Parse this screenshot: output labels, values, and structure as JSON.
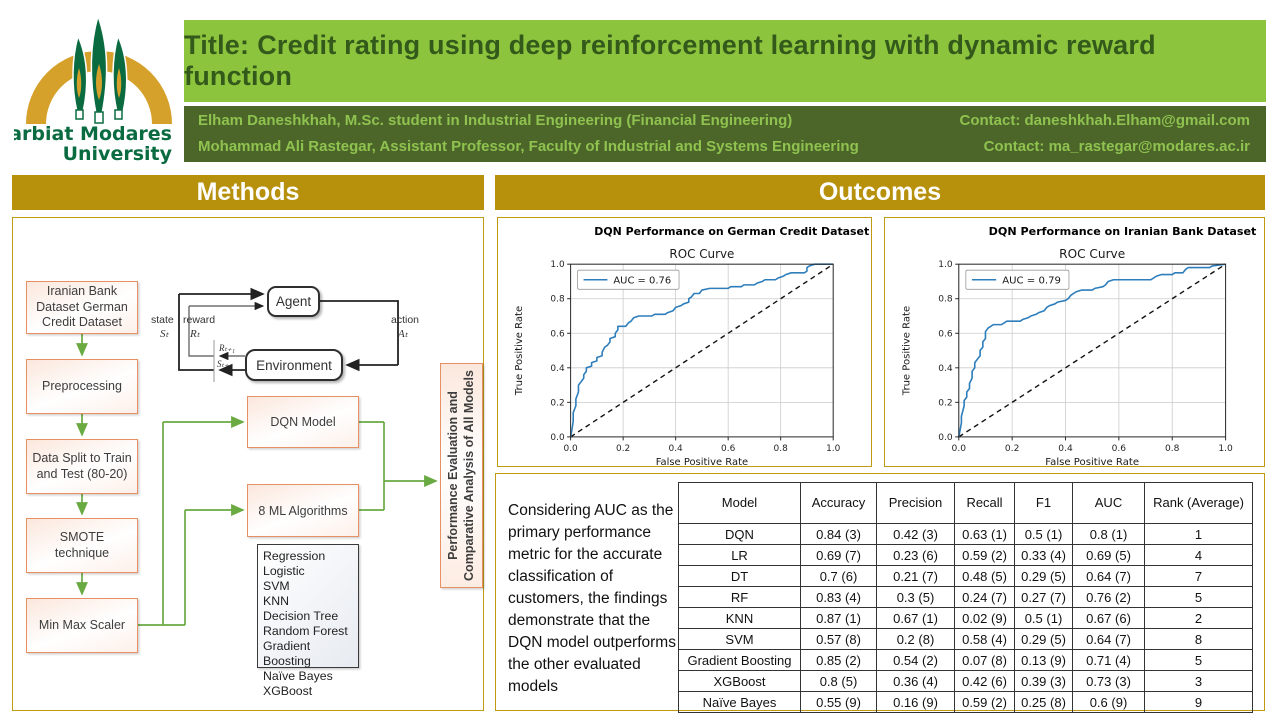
{
  "header": {
    "logo": {
      "line1": "Tarbiat Modares",
      "line2": "University"
    },
    "title_prefix": "Title:",
    "title": "Credit rating using deep reinforcement learning with dynamic reward function",
    "authors": [
      {
        "text": "Elham Daneshkhah, M.Sc. student in Industrial Engineering (Financial Engineering)",
        "contact": "Contact: daneshkhah.Elham@gmail.com"
      },
      {
        "text": "Mohammad Ali Rastegar, Assistant Professor, Faculty of Industrial and Systems Engineering",
        "contact": "Contact: ma_rastegar@modares.ac.ir"
      }
    ]
  },
  "methods": {
    "section_title": "Methods",
    "pipeline": [
      "Iranian Bank Dataset German Credit Dataset",
      "Preprocessing",
      "Data Split to Train and Test (80-20)",
      "SMOTE technique",
      "Min Max Scaler"
    ],
    "rl_diagram": {
      "agent": "Agent",
      "environment": "Environment",
      "state_label": "state",
      "state_sym": "Sₜ",
      "reward_label": "reward",
      "reward_sym": "Rₜ",
      "action_label": "action",
      "action_sym": "Aₜ",
      "r_next": "Rₜ₊₁",
      "s_next": "Sₜ₊₁"
    },
    "dqn_box": "DQN Model",
    "ml_box": "8 ML Algorithms",
    "algorithms": [
      "Regression Logistic",
      "SVM",
      "KNN",
      "Decision Tree",
      "Random Forest",
      "Gradient Boosting",
      "Naïve Bayes",
      "XGBoost"
    ],
    "evaluation_box": "Performance Evaluation and Comparative Analysis of All Models"
  },
  "outcomes": {
    "section_title": "Outcomes",
    "summary_text": "Considering AUC as the primary performance metric for the accurate classification of customers, the findings demonstrate that the DQN model outperforms the other evaluated models",
    "table": {
      "headers": [
        "Model",
        "Accuracy",
        "Precision",
        "Recall",
        "F1",
        "AUC",
        "Rank (Average)"
      ],
      "rows": [
        [
          "DQN",
          "0.84 (3)",
          "0.42 (3)",
          "0.63 (1)",
          "0.5 (1)",
          "0.8 (1)",
          "1"
        ],
        [
          "LR",
          "0.69 (7)",
          "0.23 (6)",
          "0.59 (2)",
          "0.33 (4)",
          "0.69 (5)",
          "4"
        ],
        [
          "DT",
          "0.7 (6)",
          "0.21 (7)",
          "0.48 (5)",
          "0.29 (5)",
          "0.64 (7)",
          "7"
        ],
        [
          "RF",
          "0.83 (4)",
          "0.3 (5)",
          "0.24 (7)",
          "0.27 (7)",
          "0.76 (2)",
          "5"
        ],
        [
          "KNN",
          "0.87 (1)",
          "0.67 (1)",
          "0.02 (9)",
          "0.5 (1)",
          "0.67 (6)",
          "2"
        ],
        [
          "SVM",
          "0.57 (8)",
          "0.2 (8)",
          "0.58 (4)",
          "0.29 (5)",
          "0.64 (7)",
          "8"
        ],
        [
          "Gradient Boosting",
          "0.85 (2)",
          "0.54 (2)",
          "0.07 (8)",
          "0.13 (9)",
          "0.71 (4)",
          "5"
        ],
        [
          "XGBoost",
          "0.8 (5)",
          "0.36 (4)",
          "0.42 (6)",
          "0.39 (3)",
          "0.73 (3)",
          "3"
        ],
        [
          "Naïve Bayes",
          "0.55 (9)",
          "0.16 (9)",
          "0.59 (2)",
          "0.25 (8)",
          "0.6 (9)",
          "9"
        ]
      ]
    }
  },
  "chart_data": [
    {
      "type": "line",
      "title": "DQN Performance on German Credit Dataset",
      "subtitle": "ROC Curve",
      "xlabel": "False Positive Rate",
      "ylabel": "True Positive Rate",
      "xlim": [
        0.0,
        1.0
      ],
      "ylim": [
        0.0,
        1.0
      ],
      "xticks": [
        0.0,
        0.2,
        0.4,
        0.6,
        0.8,
        1.0
      ],
      "yticks": [
        0.0,
        0.2,
        0.4,
        0.6,
        0.8,
        1.0
      ],
      "grid": true,
      "legend_position": "upper left",
      "line_color": "#2e7ebc",
      "diagonal_reference": true,
      "series": [
        {
          "name": "AUC = 0.76",
          "points": [
            [
              0,
              0
            ],
            [
              0.005,
              0.04
            ],
            [
              0.01,
              0.09
            ],
            [
              0.01,
              0.14
            ],
            [
              0.02,
              0.18
            ],
            [
              0.02,
              0.22
            ],
            [
              0.03,
              0.26
            ],
            [
              0.03,
              0.3
            ],
            [
              0.04,
              0.32
            ],
            [
              0.05,
              0.34
            ],
            [
              0.05,
              0.36
            ],
            [
              0.06,
              0.38
            ],
            [
              0.06,
              0.4
            ],
            [
              0.08,
              0.41
            ],
            [
              0.08,
              0.43
            ],
            [
              0.1,
              0.44
            ],
            [
              0.1,
              0.46
            ],
            [
              0.12,
              0.47
            ],
            [
              0.12,
              0.49
            ],
            [
              0.13,
              0.52
            ],
            [
              0.14,
              0.53
            ],
            [
              0.15,
              0.55
            ],
            [
              0.15,
              0.57
            ],
            [
              0.17,
              0.58
            ],
            [
              0.17,
              0.6
            ],
            [
              0.18,
              0.62
            ],
            [
              0.18,
              0.64
            ],
            [
              0.21,
              0.64
            ],
            [
              0.22,
              0.66
            ],
            [
              0.23,
              0.67
            ],
            [
              0.24,
              0.69
            ],
            [
              0.26,
              0.7
            ],
            [
              0.31,
              0.7
            ],
            [
              0.32,
              0.71
            ],
            [
              0.36,
              0.71
            ],
            [
              0.37,
              0.72
            ],
            [
              0.39,
              0.73
            ],
            [
              0.4,
              0.75
            ],
            [
              0.42,
              0.76
            ],
            [
              0.43,
              0.77
            ],
            [
              0.45,
              0.78
            ],
            [
              0.45,
              0.8
            ],
            [
              0.46,
              0.81
            ],
            [
              0.47,
              0.83
            ],
            [
              0.49,
              0.83
            ],
            [
              0.5,
              0.85
            ],
            [
              0.53,
              0.86
            ],
            [
              0.6,
              0.86
            ],
            [
              0.61,
              0.87
            ],
            [
              0.65,
              0.87
            ],
            [
              0.66,
              0.88
            ],
            [
              0.7,
              0.88
            ],
            [
              0.71,
              0.89
            ],
            [
              0.73,
              0.9
            ],
            [
              0.74,
              0.91
            ],
            [
              0.78,
              0.91
            ],
            [
              0.79,
              0.92
            ],
            [
              0.81,
              0.93
            ],
            [
              0.82,
              0.94
            ],
            [
              0.84,
              0.95
            ],
            [
              0.89,
              0.95
            ],
            [
              0.9,
              0.96
            ],
            [
              0.9,
              0.98
            ],
            [
              0.91,
              0.99
            ],
            [
              0.93,
              1.0
            ],
            [
              1,
              1
            ]
          ]
        }
      ]
    },
    {
      "type": "line",
      "title": "DQN Performance on Iranian Bank Dataset",
      "subtitle": "ROC Curve",
      "xlabel": "False Positive Rate",
      "ylabel": "True Positive Rate",
      "xlim": [
        0.0,
        1.0
      ],
      "ylim": [
        0.0,
        1.0
      ],
      "xticks": [
        0.0,
        0.2,
        0.4,
        0.6,
        0.8,
        1.0
      ],
      "yticks": [
        0.0,
        0.2,
        0.4,
        0.6,
        0.8,
        1.0
      ],
      "grid": true,
      "legend_position": "upper left",
      "line_color": "#2e7ebc",
      "diagonal_reference": true,
      "series": [
        {
          "name": "AUC = 0.79",
          "points": [
            [
              0,
              0
            ],
            [
              0.005,
              0.04
            ],
            [
              0.01,
              0.08
            ],
            [
              0.01,
              0.12
            ],
            [
              0.015,
              0.15
            ],
            [
              0.02,
              0.18
            ],
            [
              0.02,
              0.21
            ],
            [
              0.03,
              0.23
            ],
            [
              0.03,
              0.26
            ],
            [
              0.04,
              0.28
            ],
            [
              0.04,
              0.31
            ],
            [
              0.05,
              0.34
            ],
            [
              0.05,
              0.38
            ],
            [
              0.06,
              0.4
            ],
            [
              0.06,
              0.43
            ],
            [
              0.07,
              0.45
            ],
            [
              0.08,
              0.47
            ],
            [
              0.08,
              0.5
            ],
            [
              0.09,
              0.52
            ],
            [
              0.09,
              0.55
            ],
            [
              0.1,
              0.57
            ],
            [
              0.1,
              0.61
            ],
            [
              0.11,
              0.63
            ],
            [
              0.12,
              0.64
            ],
            [
              0.13,
              0.65
            ],
            [
              0.16,
              0.65
            ],
            [
              0.17,
              0.66
            ],
            [
              0.18,
              0.67
            ],
            [
              0.23,
              0.67
            ],
            [
              0.24,
              0.68
            ],
            [
              0.26,
              0.69
            ],
            [
              0.27,
              0.7
            ],
            [
              0.29,
              0.71
            ],
            [
              0.3,
              0.72
            ],
            [
              0.32,
              0.73
            ],
            [
              0.33,
              0.75
            ],
            [
              0.34,
              0.76
            ],
            [
              0.36,
              0.77
            ],
            [
              0.37,
              0.78
            ],
            [
              0.4,
              0.79
            ],
            [
              0.41,
              0.8
            ],
            [
              0.42,
              0.82
            ],
            [
              0.43,
              0.83
            ],
            [
              0.44,
              0.84
            ],
            [
              0.46,
              0.85
            ],
            [
              0.5,
              0.85
            ],
            [
              0.51,
              0.86
            ],
            [
              0.54,
              0.87
            ],
            [
              0.55,
              0.88
            ],
            [
              0.56,
              0.9
            ],
            [
              0.58,
              0.91
            ],
            [
              0.72,
              0.91
            ],
            [
              0.74,
              0.93
            ],
            [
              0.76,
              0.94
            ],
            [
              0.8,
              0.94
            ],
            [
              0.81,
              0.95
            ],
            [
              0.84,
              0.95
            ],
            [
              0.85,
              0.97
            ],
            [
              0.86,
              0.98
            ],
            [
              0.94,
              0.98
            ],
            [
              0.95,
              0.99
            ],
            [
              1,
              1
            ]
          ]
        }
      ]
    }
  ]
}
